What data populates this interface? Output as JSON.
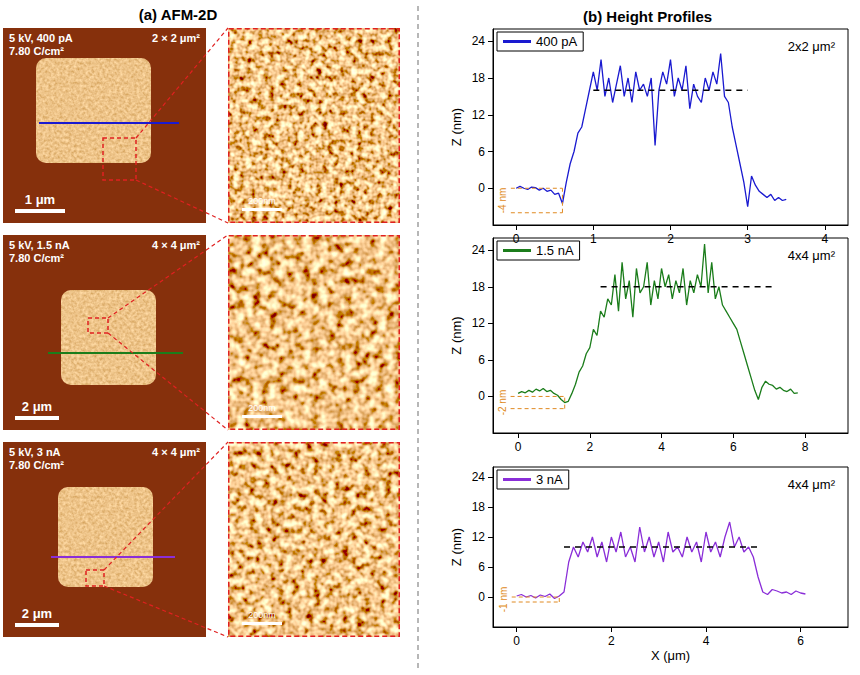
{
  "panel_a": {
    "title": "(a) AFM-2D",
    "rows": [
      {
        "conditions": "5 kV, 400 pA",
        "dose": "7.80 C/cm²",
        "scan_size": "2 × 2 μm²",
        "scale_bar": "1 μm",
        "zoom_scale_bar": "200nm"
      },
      {
        "conditions": "5 kV, 1.5 nA",
        "dose": "7.80 C/cm²",
        "scan_size": "4 × 4 μm²",
        "scale_bar": "2 μm",
        "zoom_scale_bar": "200nm"
      },
      {
        "conditions": "5 kV, 3 nA",
        "dose": "7.80 C/cm²",
        "scan_size": "4 × 4 μm²",
        "scale_bar": "2 μm",
        "zoom_scale_bar": "200nm"
      }
    ]
  },
  "panel_b": {
    "title": "(b) Height Profiles"
  },
  "chart_data": [
    {
      "type": "line",
      "title": "2x2 μm²",
      "y_label": "Z (nm)",
      "legend": "upper left",
      "grid": false,
      "x": [
        0,
        0.05,
        0.1,
        0.15,
        0.2,
        0.25,
        0.3,
        0.35,
        0.4,
        0.45,
        0.5,
        0.55,
        0.6,
        0.65,
        0.7,
        0.75,
        0.8,
        0.85,
        0.9,
        0.95,
        1,
        1.05,
        1.1,
        1.15,
        1.2,
        1.25,
        1.3,
        1.35,
        1.4,
        1.45,
        1.5,
        1.55,
        1.6,
        1.65,
        1.7,
        1.75,
        1.8,
        1.85,
        1.9,
        1.95,
        2,
        2.05,
        2.1,
        2.15,
        2.2,
        2.25,
        2.3,
        2.35,
        2.4,
        2.45,
        2.5,
        2.55,
        2.6,
        2.65,
        2.7,
        2.75,
        2.8,
        2.85,
        2.9,
        2.95,
        3,
        3.05,
        3.1,
        3.15,
        3.2,
        3.25,
        3.3,
        3.35,
        3.4,
        3.45,
        3.5
      ],
      "series": [
        {
          "name": "400 pA",
          "color": "#1a1ad0",
          "values": [
            0,
            0.3,
            0,
            -0.2,
            0.2,
            0.1,
            -0.3,
            0,
            -0.5,
            -0.3,
            -1,
            -0.8,
            -2.5,
            1,
            4,
            6,
            9,
            10,
            13,
            16,
            19,
            16,
            21,
            15,
            18,
            14,
            17,
            20,
            15,
            18,
            14,
            19,
            16,
            17,
            15,
            18,
            7,
            16,
            19,
            17,
            21,
            15,
            18,
            16,
            20,
            13,
            17,
            15,
            14,
            18,
            16,
            19,
            17,
            22,
            15,
            14,
            10,
            7,
            4,
            1,
            -3,
            2,
            0.5,
            -0.5,
            -1,
            -1.5,
            -1,
            -2,
            -1.5,
            -2,
            -1.8
          ]
        }
      ],
      "plateau_line": {
        "y": 16,
        "x_range": [
          1,
          3
        ]
      },
      "offset_annotation": {
        "label": "-4 nm",
        "x_range": [
          -0.25,
          0.6
        ],
        "y_range": [
          -4,
          0
        ]
      },
      "xlim": [
        -0.3,
        4.3
      ],
      "xticks": [
        0,
        1,
        2,
        3,
        4
      ],
      "ylim": [
        -6,
        26
      ],
      "yticks": [
        0,
        6,
        12,
        18,
        24
      ]
    },
    {
      "type": "line",
      "title": "4x4 μm²",
      "y_label": "Z (nm)",
      "legend": "upper left",
      "grid": false,
      "x": [
        0,
        0.1,
        0.2,
        0.3,
        0.4,
        0.5,
        0.6,
        0.7,
        0.8,
        0.9,
        1,
        1.1,
        1.2,
        1.3,
        1.4,
        1.5,
        1.6,
        1.7,
        1.8,
        1.9,
        2,
        2.1,
        2.2,
        2.3,
        2.4,
        2.5,
        2.6,
        2.7,
        2.8,
        2.9,
        3,
        3.1,
        3.2,
        3.3,
        3.4,
        3.5,
        3.6,
        3.7,
        3.8,
        3.9,
        4,
        4.1,
        4.2,
        4.3,
        4.4,
        4.5,
        4.6,
        4.7,
        4.8,
        4.9,
        5,
        5.1,
        5.2,
        5.3,
        5.4,
        5.5,
        5.6,
        5.7,
        5.8,
        5.9,
        6,
        6.1,
        6.2,
        6.3,
        6.4,
        6.5,
        6.6,
        6.7,
        6.8,
        6.9,
        7,
        7.1,
        7.2,
        7.3,
        7.4,
        7.5,
        7.6,
        7.7,
        7.8
      ],
      "series": [
        {
          "name": "1.5 nA",
          "color": "#1b7d1b",
          "values": [
            0.5,
            0.8,
            0.6,
            1,
            0.7,
            1.2,
            0.9,
            1.3,
            0.8,
            1,
            0.5,
            0.2,
            -0.5,
            -1,
            -0.8,
            0.5,
            2,
            4,
            5,
            7,
            8,
            11,
            10,
            14,
            13,
            16,
            15,
            20,
            14,
            22,
            16,
            19,
            13,
            21,
            17,
            18,
            22,
            15,
            19,
            16,
            21,
            18,
            20,
            16,
            19,
            17,
            21,
            15,
            19,
            17,
            20,
            18,
            25,
            17,
            22,
            16,
            18,
            15,
            14,
            13,
            12,
            11,
            9,
            7,
            5,
            3,
            1,
            -0.5,
            1.5,
            2.5,
            2,
            1.8,
            1.2,
            1.5,
            1,
            0.8,
            1.2,
            0.5,
            0.6
          ]
        }
      ],
      "plateau_line": {
        "y": 18,
        "x_range": [
          2.3,
          7.2
        ]
      },
      "offset_annotation": {
        "label": "-2 nm",
        "x_range": [
          -0.6,
          1.3
        ],
        "y_range": [
          -2,
          0
        ]
      },
      "xlim": [
        -0.7,
        9.2
      ],
      "xticks": [
        0,
        2,
        4,
        6,
        8
      ],
      "ylim": [
        -6,
        26
      ],
      "yticks": [
        0,
        6,
        12,
        18,
        24
      ]
    },
    {
      "type": "line",
      "title": "4x4 μm²",
      "x_label": "X (μm)",
      "y_label": "Z (nm)",
      "legend": "upper left",
      "grid": false,
      "x": [
        0,
        0.1,
        0.2,
        0.3,
        0.4,
        0.5,
        0.6,
        0.7,
        0.8,
        0.9,
        1,
        1.1,
        1.2,
        1.3,
        1.4,
        1.5,
        1.6,
        1.7,
        1.8,
        1.9,
        2,
        2.1,
        2.2,
        2.3,
        2.4,
        2.5,
        2.6,
        2.7,
        2.8,
        2.9,
        3,
        3.1,
        3.2,
        3.3,
        3.4,
        3.5,
        3.6,
        3.7,
        3.8,
        3.9,
        4,
        4.1,
        4.2,
        4.3,
        4.4,
        4.5,
        4.6,
        4.7,
        4.8,
        4.9,
        5,
        5.1,
        5.2,
        5.3,
        5.4,
        5.5,
        5.6,
        5.7,
        5.8,
        5.9,
        6,
        6.1
      ],
      "series": [
        {
          "name": "3 nA",
          "color": "#8a2ed8",
          "values": [
            0.2,
            0.5,
            0,
            0.3,
            -0.2,
            0.4,
            0.1,
            0.6,
            -0.3,
            0.2,
            1,
            7,
            10,
            8,
            11,
            9,
            12,
            8,
            11,
            7,
            12,
            9,
            13,
            8,
            10,
            7,
            14,
            9,
            12,
            8,
            11,
            7,
            13,
            9,
            10,
            8,
            12,
            9,
            11,
            7,
            13,
            9,
            11,
            8,
            12,
            15,
            10,
            12,
            9,
            10,
            8,
            4,
            1,
            0.5,
            1.5,
            1.2,
            0.8,
            1,
            0.5,
            1.2,
            0.8,
            0.6
          ]
        }
      ],
      "plateau_line": {
        "y": 10,
        "x_range": [
          1,
          5.1
        ]
      },
      "offset_annotation": {
        "label": "-1 nm",
        "x_range": [
          -0.4,
          0.9
        ],
        "y_range": [
          -1,
          0
        ]
      },
      "xlim": [
        -0.5,
        7
      ],
      "xticks": [
        0,
        2,
        4,
        6
      ],
      "ylim": [
        -6,
        26
      ],
      "yticks": [
        0,
        6,
        12,
        18,
        24
      ]
    }
  ]
}
